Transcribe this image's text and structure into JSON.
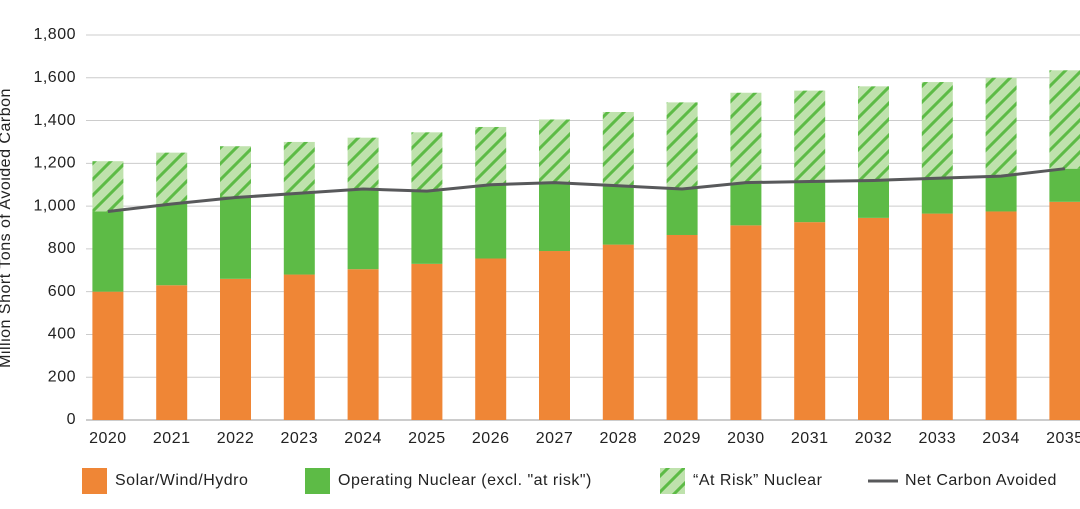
{
  "chart_data": {
    "type": "bar",
    "stacked": true,
    "y_label": "Million Short Tons of Avoided Carbon",
    "categories": [
      "2020",
      "2021",
      "2022",
      "2023",
      "2024",
      "2025",
      "2026",
      "2027",
      "2028",
      "2029",
      "2030",
      "2031",
      "2032",
      "2033",
      "2034",
      "2035"
    ],
    "series": [
      {
        "name": "Solar/Wind/Hydro",
        "color": "#ef8636",
        "values": [
          600,
          630,
          660,
          680,
          705,
          730,
          755,
          790,
          820,
          865,
          910,
          925,
          945,
          965,
          975,
          1020
        ]
      },
      {
        "name": "Operating Nuclear (excl. \"at risk\")",
        "color": "#5dbb46",
        "values": [
          375,
          380,
          385,
          380,
          375,
          340,
          345,
          320,
          275,
          220,
          200,
          190,
          175,
          165,
          170,
          155
        ]
      },
      {
        "name": "“At Risk” Nuclear",
        "color": "#bfe2ad",
        "hatch_color": "#5dbb46",
        "pattern": "hatch",
        "values": [
          235,
          240,
          235,
          240,
          240,
          275,
          270,
          295,
          345,
          400,
          420,
          425,
          440,
          450,
          455,
          460
        ]
      },
      {
        "name": "Net Carbon Avoided",
        "type": "line",
        "color": "#58595b",
        "values": [
          975,
          1010,
          1040,
          1060,
          1080,
          1070,
          1100,
          1110,
          1095,
          1080,
          1110,
          1115,
          1120,
          1130,
          1140,
          1175
        ]
      }
    ],
    "ylim": [
      0,
      1800
    ],
    "yticks": [
      0,
      200,
      400,
      600,
      800,
      {
        "value": 1000,
        "label": "1,000"
      },
      {
        "value": 1200,
        "label": "1,200"
      },
      {
        "value": 1400,
        "label": "1,400"
      },
      {
        "value": 1600,
        "label": "1,600"
      },
      {
        "value": 1800,
        "label": "1,800"
      }
    ],
    "grid": true,
    "legend": "bottom"
  }
}
